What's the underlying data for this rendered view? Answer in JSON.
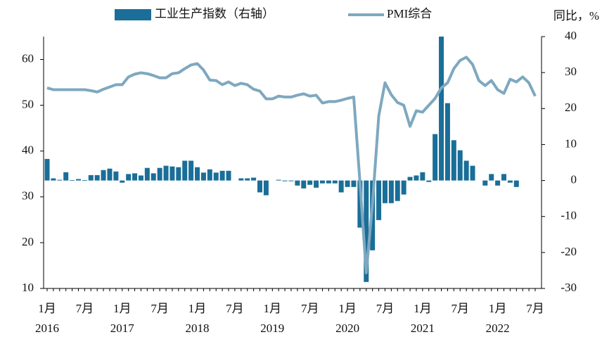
{
  "chart_data": {
    "type": "bar_line",
    "y2_label": "同比，%",
    "categories": [
      "1月",
      null,
      null,
      null,
      null,
      null,
      "7月",
      null,
      null,
      null,
      null,
      null,
      "1月",
      null,
      null,
      null,
      null,
      null,
      "7月",
      null,
      null,
      null,
      null,
      null,
      "1月",
      null,
      null,
      null,
      null,
      null,
      "7月",
      null,
      null,
      null,
      null,
      null,
      "1月",
      null,
      null,
      null,
      null,
      null,
      "7月",
      null,
      null,
      null,
      null,
      null,
      "1月",
      null,
      null,
      null,
      null,
      null,
      "7月",
      null,
      null,
      null,
      null,
      null,
      "1月",
      null,
      null,
      null,
      null,
      null,
      "7月",
      null,
      null,
      null,
      null,
      null,
      "1月",
      null,
      null,
      null,
      null,
      null,
      "7月"
    ],
    "years": [
      "2016",
      "2017",
      "2018",
      "2019",
      "2020",
      "2021",
      "2022"
    ],
    "series": [
      {
        "name": "工业生产指数（右轴）",
        "kind": "bar",
        "axis": "y2",
        "color": "#1a6e98",
        "values": [
          6.0,
          0.6,
          0.2,
          2.3,
          0.1,
          0.4,
          0.1,
          1.5,
          1.5,
          2.9,
          3.3,
          2.5,
          -0.6,
          1.8,
          2.0,
          1.4,
          3.5,
          2.0,
          3.5,
          4.1,
          3.9,
          3.7,
          5.5,
          5.5,
          3.7,
          2.2,
          3.1,
          2.2,
          2.7,
          2.7,
          null,
          0.6,
          0.6,
          0.8,
          -3.3,
          -4.1,
          null,
          0.2,
          -0.2,
          -0.2,
          -1.4,
          -2.2,
          -1.2,
          -2.0,
          -0.8,
          -0.8,
          -0.8,
          -3.3,
          -1.8,
          -1.8,
          -13.1,
          -28.2,
          -19.4,
          -11.0,
          -6.3,
          -6.3,
          -5.7,
          -3.9,
          1.0,
          1.4,
          2.3,
          -0.4,
          12.9,
          40,
          21.5,
          11.2,
          8.4,
          5.5,
          4.1,
          null,
          -1.4,
          1.8,
          -1.4,
          1.8,
          -0.6,
          -1.8,
          null,
          null,
          null
        ]
      },
      {
        "name": "PMI综合",
        "kind": "line",
        "axis": "y",
        "color": "#7ea8bf",
        "values": [
          53.8,
          53.4,
          53.4,
          53.4,
          53.4,
          53.4,
          53.4,
          53.2,
          52.9,
          53.5,
          54.0,
          54.5,
          54.5,
          56.2,
          56.8,
          57.1,
          56.9,
          56.5,
          56.0,
          56.0,
          56.9,
          57.1,
          58.0,
          58.8,
          59.1,
          57.7,
          55.5,
          55.4,
          54.5,
          55.1,
          54.3,
          54.8,
          54.5,
          53.5,
          53.1,
          51.4,
          51.4,
          52.0,
          51.8,
          51.8,
          52.2,
          52.5,
          52.0,
          52.2,
          50.5,
          50.8,
          50.8,
          51.1,
          51.5,
          51.8,
          33.1,
          13.4,
          28.5,
          47.7,
          54.9,
          52.3,
          50.6,
          50.0,
          45.4,
          48.8,
          48.5,
          50.0,
          51.5,
          53.8,
          54.9,
          58.0,
          59.8,
          60.5,
          58.9,
          55.4,
          54.3,
          55.4,
          53.4,
          52.6,
          55.7,
          55.1,
          56.2,
          54.9,
          52.0
        ]
      }
    ],
    "ylim": [
      10,
      65
    ],
    "yticks": [
      10,
      20,
      30,
      40,
      50,
      60
    ],
    "y2lim": [
      -30,
      40
    ],
    "y2ticks": [
      -30,
      -20,
      -10,
      0,
      10,
      20,
      30,
      40
    ]
  }
}
